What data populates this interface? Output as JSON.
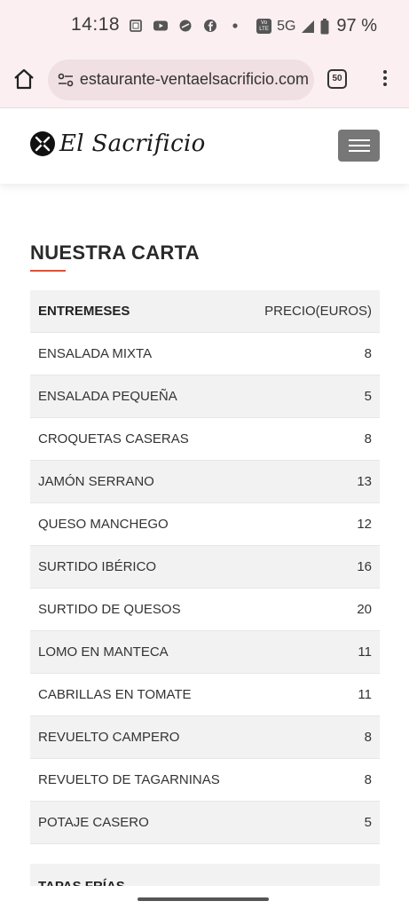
{
  "status_bar": {
    "time": "14:18",
    "network": "5G",
    "battery": "97 %",
    "icons": [
      "screenshot-icon",
      "youtube-icon",
      "app-icon",
      "facebook-icon",
      "dot-icon",
      "volte-icon",
      "signal-icon",
      "battery-icon"
    ]
  },
  "browser": {
    "url": "restaurante-ventaelsacrificio.com",
    "tab_count": "50"
  },
  "site": {
    "brand": "El Sacrificio",
    "accent_color": "#d9533a"
  },
  "menu": {
    "title": "NUESTRA CARTA",
    "columns": [
      "ENTREMESES",
      "PRECIO(EUROS)"
    ],
    "rows": [
      {
        "name": "ENSALADA MIXTA",
        "price": "8"
      },
      {
        "name": "ENSALADA PEQUEÑA",
        "price": "5"
      },
      {
        "name": "CROQUETAS CASERAS",
        "price": "8"
      },
      {
        "name": "JAMÓN SERRANO",
        "price": "13"
      },
      {
        "name": "QUESO MANCHEGO",
        "price": "12"
      },
      {
        "name": "SURTIDO IBÉRICO",
        "price": "16"
      },
      {
        "name": "SURTIDO DE QUESOS",
        "price": "20"
      },
      {
        "name": "LOMO EN MANTECA",
        "price": "11"
      },
      {
        "name": "CABRILLAS EN TOMATE",
        "price": "11"
      },
      {
        "name": "REVUELTO CAMPERO",
        "price": "8"
      },
      {
        "name": "REVUELTO DE TAGARNINAS",
        "price": "8"
      },
      {
        "name": "POTAJE CASERO",
        "price": "5"
      }
    ],
    "next_section": "TAPAS FRÍAS"
  }
}
